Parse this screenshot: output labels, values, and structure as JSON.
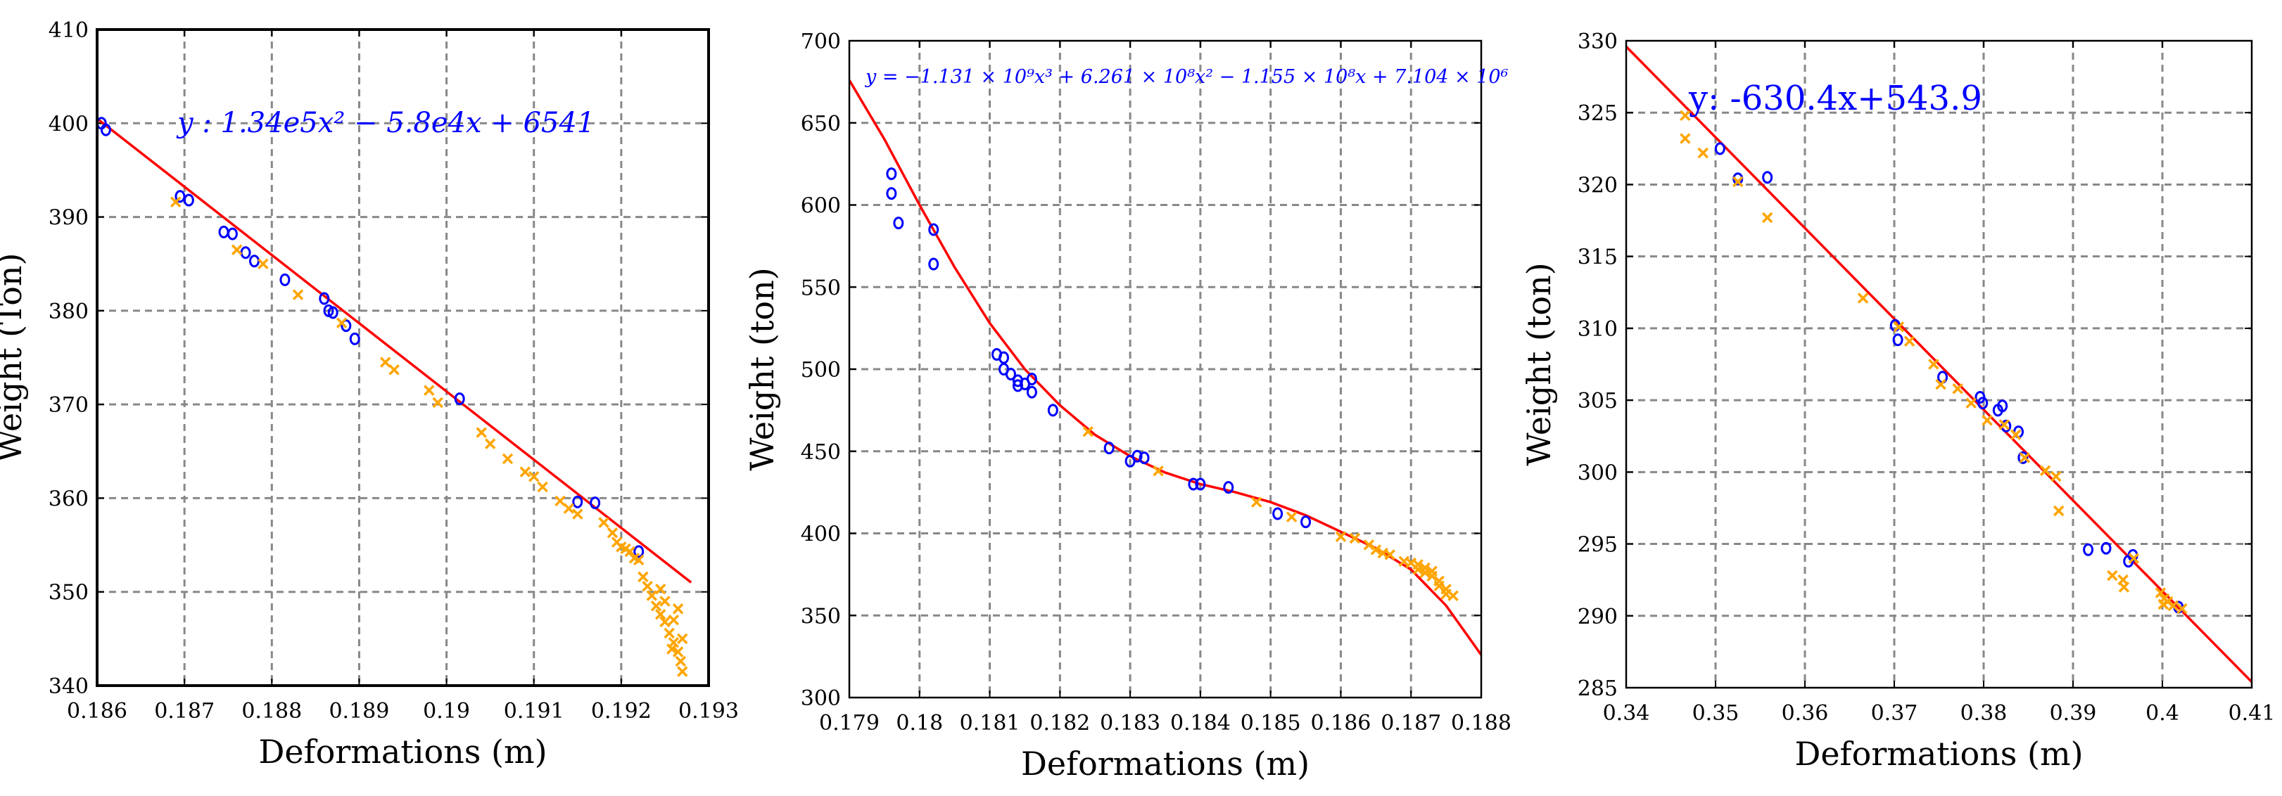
{
  "colors": {
    "fit_line": "#ff0000",
    "circle_marker": "#0000ff",
    "cross_marker": "#ffa500",
    "equation_text": "#0000ff",
    "grid": "#888888",
    "axes": "#000000",
    "background": "#ffffff"
  },
  "chart_data": [
    {
      "type": "scatter",
      "title": "",
      "xlabel": "Deformations (m)",
      "ylabel": "Weight (Ton)",
      "xlim": [
        0.186,
        0.193
      ],
      "ylim": [
        340,
        410
      ],
      "x_ticks": [
        0.186,
        0.187,
        0.188,
        0.189,
        0.19,
        0.191,
        0.192,
        0.193
      ],
      "x_tick_labels": [
        "0.186",
        "0.187",
        "0.188",
        "0.189",
        "0.19",
        "0.191",
        "0.192",
        "0.193"
      ],
      "y_ticks": [
        340,
        350,
        360,
        370,
        380,
        390,
        400,
        410
      ],
      "y_tick_labels": [
        "340",
        "350",
        "360",
        "370",
        "380",
        "390",
        "400",
        "410"
      ],
      "grid": true,
      "equation": "y : 1.34e5x² − 5.8e4x + 6541",
      "fit": {
        "kind": "line",
        "points": [
          [
            0.186,
            400.5
          ],
          [
            0.1928,
            351.0
          ]
        ]
      },
      "series": [
        {
          "marker": "circle",
          "values": [
            [
              0.18605,
              400.0
            ],
            [
              0.1861,
              399.3
            ],
            [
              0.18695,
              392.2
            ],
            [
              0.18705,
              391.8
            ],
            [
              0.18745,
              388.4
            ],
            [
              0.18755,
              388.2
            ],
            [
              0.1877,
              386.2
            ],
            [
              0.1878,
              385.3
            ],
            [
              0.18815,
              383.3
            ],
            [
              0.1886,
              381.3
            ],
            [
              0.18865,
              380.0
            ],
            [
              0.1887,
              379.8
            ],
            [
              0.18885,
              378.4
            ],
            [
              0.18895,
              377.0
            ],
            [
              0.19015,
              370.6
            ],
            [
              0.1915,
              359.6
            ],
            [
              0.1917,
              359.5
            ],
            [
              0.1922,
              354.3
            ]
          ]
        },
        {
          "marker": "cross",
          "values": [
            [
              0.1869,
              391.6
            ],
            [
              0.1876,
              386.5
            ],
            [
              0.1879,
              385.0
            ],
            [
              0.1883,
              381.7
            ],
            [
              0.1888,
              378.7
            ],
            [
              0.1893,
              374.5
            ],
            [
              0.1894,
              373.7
            ],
            [
              0.1898,
              371.5
            ],
            [
              0.1899,
              370.2
            ],
            [
              0.1904,
              367.0
            ],
            [
              0.1905,
              365.8
            ],
            [
              0.1907,
              364.2
            ],
            [
              0.1909,
              362.8
            ],
            [
              0.191,
              362.3
            ],
            [
              0.1911,
              361.2
            ],
            [
              0.1913,
              359.7
            ],
            [
              0.1914,
              358.9
            ],
            [
              0.1915,
              358.3
            ],
            [
              0.1918,
              357.4
            ],
            [
              0.1919,
              356.3
            ],
            [
              0.19195,
              355.3
            ],
            [
              0.192,
              354.8
            ],
            [
              0.19205,
              354.6
            ],
            [
              0.1921,
              354.3
            ],
            [
              0.19215,
              353.6
            ],
            [
              0.1922,
              353.4
            ],
            [
              0.19225,
              351.6
            ],
            [
              0.1923,
              350.6
            ],
            [
              0.19235,
              349.6
            ],
            [
              0.1924,
              348.5
            ],
            [
              0.19245,
              347.6
            ],
            [
              0.1925,
              346.8
            ],
            [
              0.19255,
              345.6
            ],
            [
              0.1926,
              344.6
            ],
            [
              0.19265,
              343.6
            ],
            [
              0.19268,
              342.6
            ],
            [
              0.1927,
              341.5
            ],
            [
              0.19265,
              348.2
            ],
            [
              0.1925,
              349.0
            ],
            [
              0.1926,
              347.0
            ],
            [
              0.19245,
              350.3
            ],
            [
              0.1927,
              345.0
            ],
            [
              0.19258,
              343.9
            ]
          ]
        }
      ]
    },
    {
      "type": "scatter",
      "title": "",
      "xlabel": "Deformations (m)",
      "ylabel": "Weight (ton)",
      "xlim": [
        0.179,
        0.188
      ],
      "ylim": [
        300,
        700
      ],
      "x_ticks": [
        0.179,
        0.18,
        0.181,
        0.182,
        0.183,
        0.184,
        0.185,
        0.186,
        0.187,
        0.188
      ],
      "x_tick_labels": [
        "0.179",
        "0.18",
        "0.181",
        "0.182",
        "0.183",
        "0.184",
        "0.185",
        "0.186",
        "0.187",
        "0.188"
      ],
      "y_ticks": [
        300,
        350,
        400,
        450,
        500,
        550,
        600,
        650,
        700
      ],
      "y_tick_labels": [
        "300",
        "350",
        "400",
        "450",
        "500",
        "550",
        "600",
        "650",
        "700"
      ],
      "grid": true,
      "equation": "y = −1.131 × 10⁹x³ + 6.261 × 10⁸x² − 1.155 × 10⁸x + 7.104 × 10⁶",
      "fit": {
        "kind": "curve",
        "points": [
          [
            0.179,
            676
          ],
          [
            0.1795,
            640
          ],
          [
            0.18,
            600
          ],
          [
            0.1805,
            562
          ],
          [
            0.181,
            528
          ],
          [
            0.1815,
            500
          ],
          [
            0.182,
            478
          ],
          [
            0.1825,
            460
          ],
          [
            0.183,
            447
          ],
          [
            0.1835,
            437
          ],
          [
            0.184,
            430
          ],
          [
            0.1845,
            425
          ],
          [
            0.185,
            419
          ],
          [
            0.1855,
            411
          ],
          [
            0.186,
            401
          ],
          [
            0.1865,
            391
          ],
          [
            0.187,
            378
          ],
          [
            0.1875,
            356
          ],
          [
            0.188,
            326
          ]
        ]
      },
      "series": [
        {
          "marker": "circle",
          "values": [
            [
              0.1796,
              619
            ],
            [
              0.1796,
              607
            ],
            [
              0.1797,
              589
            ],
            [
              0.1802,
              585
            ],
            [
              0.1802,
              564
            ],
            [
              0.1811,
              509
            ],
            [
              0.1812,
              507
            ],
            [
              0.1812,
              500
            ],
            [
              0.1813,
              497
            ],
            [
              0.1814,
              493
            ],
            [
              0.1814,
              490
            ],
            [
              0.1815,
              491
            ],
            [
              0.1816,
              494
            ],
            [
              0.1816,
              486
            ],
            [
              0.1819,
              475
            ],
            [
              0.1827,
              452
            ],
            [
              0.183,
              444
            ],
            [
              0.1831,
              447
            ],
            [
              0.1832,
              446
            ],
            [
              0.1839,
              430
            ],
            [
              0.184,
              430
            ],
            [
              0.1844,
              428
            ],
            [
              0.1851,
              412
            ],
            [
              0.1855,
              407
            ]
          ]
        },
        {
          "marker": "cross",
          "values": [
            [
              0.1824,
              462
            ],
            [
              0.1834,
              438
            ],
            [
              0.1848,
              419
            ],
            [
              0.1853,
              410
            ],
            [
              0.186,
              398
            ],
            [
              0.1862,
              397
            ],
            [
              0.1864,
              393
            ],
            [
              0.1865,
              390
            ],
            [
              0.1866,
              388
            ],
            [
              0.1867,
              387
            ],
            [
              0.1869,
              383
            ],
            [
              0.187,
              382
            ],
            [
              0.1871,
              381
            ],
            [
              0.1872,
              379
            ],
            [
              0.1873,
              377
            ],
            [
              0.1873,
              374
            ],
            [
              0.1874,
              371
            ],
            [
              0.1874,
              368
            ],
            [
              0.1875,
              366
            ],
            [
              0.1875,
              363
            ],
            [
              0.1876,
              362
            ],
            [
              0.1872,
              376
            ],
            [
              0.1871,
              378
            ]
          ]
        }
      ]
    },
    {
      "type": "scatter",
      "title": "",
      "xlabel": "Deformations (m)",
      "ylabel": "Weight (ton)",
      "xlim": [
        0.34,
        0.41
      ],
      "ylim": [
        285,
        330
      ],
      "x_ticks": [
        0.34,
        0.35,
        0.36,
        0.37,
        0.38,
        0.39,
        0.4,
        0.41
      ],
      "x_tick_labels": [
        "0.34",
        "0.35",
        "0.36",
        "0.37",
        "0.38",
        "0.39",
        "0.4",
        "0.41"
      ],
      "y_ticks": [
        285,
        290,
        295,
        300,
        305,
        310,
        315,
        320,
        325,
        330
      ],
      "y_tick_labels": [
        "285",
        "290",
        "295",
        "300",
        "305",
        "310",
        "315",
        "320",
        "325",
        "330"
      ],
      "grid": true,
      "equation": "y: -630.4x+543.9",
      "fit": {
        "kind": "line",
        "points": [
          [
            0.34,
            329.6
          ],
          [
            0.41,
            285.4
          ]
        ]
      },
      "series": [
        {
          "marker": "circle",
          "values": [
            [
              0.3505,
              322.5
            ],
            [
              0.3525,
              320.4
            ],
            [
              0.3558,
              320.5
            ],
            [
              0.3701,
              310.2
            ],
            [
              0.3704,
              309.2
            ],
            [
              0.3754,
              306.6
            ],
            [
              0.3796,
              305.2
            ],
            [
              0.3799,
              304.8
            ],
            [
              0.3816,
              304.3
            ],
            [
              0.3821,
              304.6
            ],
            [
              0.3825,
              303.2
            ],
            [
              0.3839,
              302.8
            ],
            [
              0.3844,
              301.0
            ],
            [
              0.3917,
              294.6
            ],
            [
              0.3937,
              294.7
            ],
            [
              0.3962,
              293.8
            ],
            [
              0.3967,
              294.2
            ],
            [
              0.4018,
              290.6
            ]
          ]
        },
        {
          "marker": "cross",
          "values": [
            [
              0.3466,
              324.8
            ],
            [
              0.3466,
              323.2
            ],
            [
              0.3486,
              322.2
            ],
            [
              0.3525,
              320.2
            ],
            [
              0.3558,
              317.7
            ],
            [
              0.3665,
              312.1
            ],
            [
              0.3705,
              310.1
            ],
            [
              0.3717,
              309.1
            ],
            [
              0.3744,
              307.5
            ],
            [
              0.3752,
              306.1
            ],
            [
              0.3771,
              305.8
            ],
            [
              0.3786,
              304.8
            ],
            [
              0.3804,
              303.6
            ],
            [
              0.3823,
              303.3
            ],
            [
              0.3836,
              302.6
            ],
            [
              0.3846,
              301.0
            ],
            [
              0.3869,
              300.1
            ],
            [
              0.3881,
              299.7
            ],
            [
              0.3884,
              297.3
            ],
            [
              0.3944,
              292.8
            ],
            [
              0.3956,
              292.5
            ],
            [
              0.3957,
              292.0
            ],
            [
              0.3968,
              294.0
            ],
            [
              0.3998,
              291.6
            ],
            [
              0.4002,
              291.2
            ],
            [
              0.4006,
              291.0
            ],
            [
              0.4012,
              290.7
            ],
            [
              0.4022,
              290.5
            ],
            [
              0.4001,
              290.8
            ]
          ]
        }
      ]
    }
  ]
}
